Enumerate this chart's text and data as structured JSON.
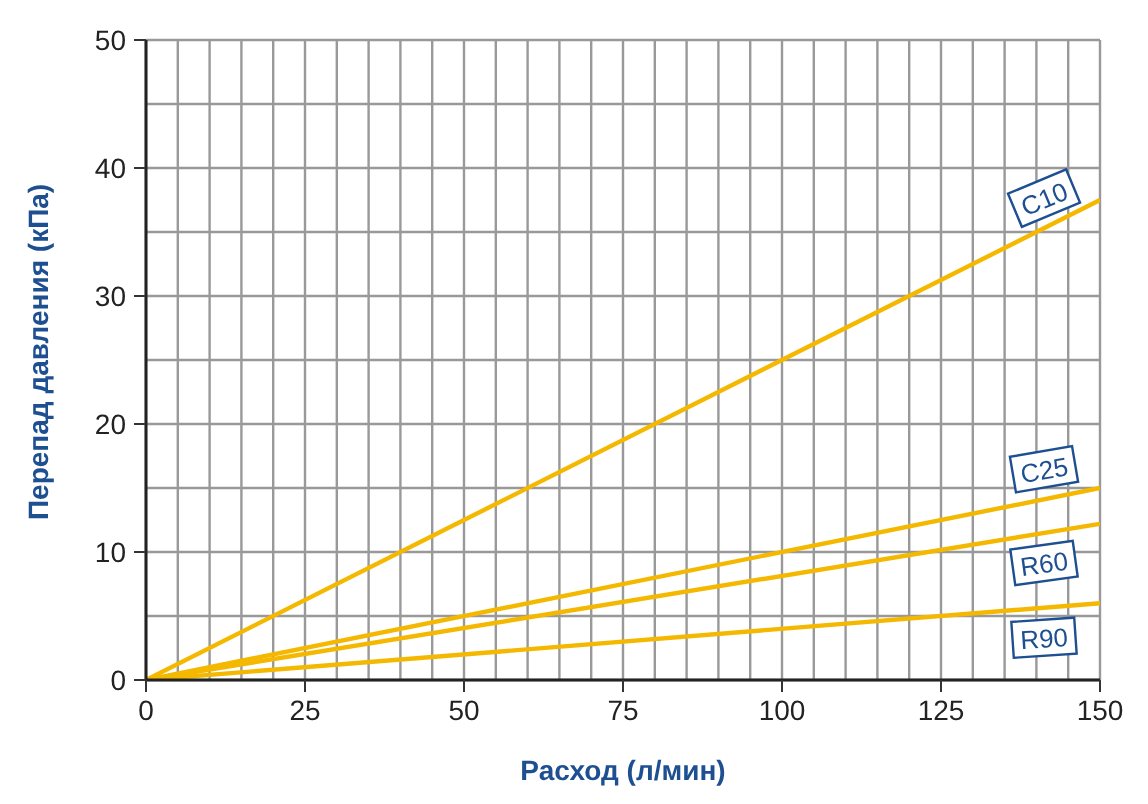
{
  "chart_data": {
    "type": "line",
    "xlabel": "Расход (л/мин)",
    "ylabel": "Перепад давления (кПа)",
    "x": [
      0,
      150
    ],
    "series": [
      {
        "name": "C10",
        "color": "#f5b800",
        "values": [
          0,
          37.5
        ]
      },
      {
        "name": "C25",
        "color": "#f5b800",
        "values": [
          0,
          15
        ]
      },
      {
        "name": "R60",
        "color": "#f5b800",
        "values": [
          0,
          12.2
        ]
      },
      {
        "name": "R90",
        "color": "#f5b800",
        "values": [
          0,
          6
        ]
      }
    ],
    "xlim": [
      0,
      150
    ],
    "ylim": [
      0,
      50
    ],
    "xticks": [
      0,
      {
        "value": 5,
        "label": null
      },
      {
        "value": 10,
        "label": null
      },
      {
        "value": 15,
        "label": null
      },
      {
        "value": 20,
        "label": null
      },
      25,
      {
        "value": 30,
        "label": null
      },
      {
        "value": 35,
        "label": null
      },
      {
        "value": 40,
        "label": null
      },
      {
        "value": 45,
        "label": null
      },
      50,
      {
        "value": 55,
        "label": null
      },
      {
        "value": 60,
        "label": null
      },
      {
        "value": 65,
        "label": null
      },
      {
        "value": 70,
        "label": null
      },
      75,
      {
        "value": 80,
        "label": null
      },
      {
        "value": 85,
        "label": null
      },
      {
        "value": 90,
        "label": null
      },
      {
        "value": 95,
        "label": null
      },
      100,
      {
        "value": 105,
        "label": null
      },
      {
        "value": 110,
        "label": null
      },
      {
        "value": 115,
        "label": null
      },
      {
        "value": 120,
        "label": null
      },
      125,
      {
        "value": 130,
        "label": null
      },
      {
        "value": 135,
        "label": null
      },
      {
        "value": 140,
        "label": null
      },
      {
        "value": 145,
        "label": null
      },
      150
    ],
    "yticks": [
      0,
      {
        "value": 5,
        "label": null
      },
      10,
      {
        "value": 15,
        "label": null
      },
      20,
      {
        "value": 25,
        "label": null
      },
      30,
      {
        "value": 35,
        "label": null
      },
      40,
      {
        "value": 45,
        "label": null
      },
      50
    ],
    "grid": true,
    "marker": "none",
    "line_style": "solid"
  }
}
